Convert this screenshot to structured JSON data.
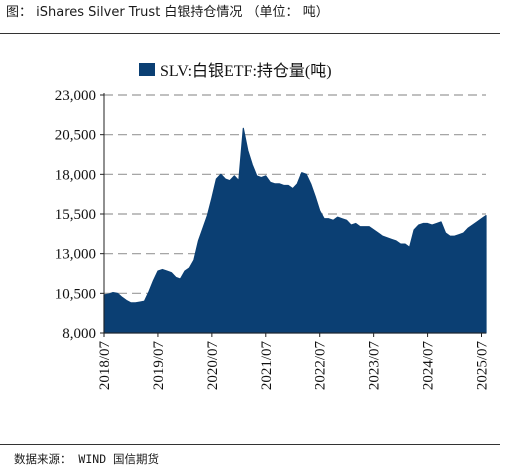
{
  "figure": {
    "title": "图：  iShares Silver Trust  白银持仓情况 （单位：  吨）",
    "source": "数据来源：  WIND  国信期货"
  },
  "colors": {
    "series": "#0b3f73",
    "grid": "#9a9a9a",
    "axis": "#222222"
  },
  "chart_data": {
    "type": "area",
    "title": "",
    "xlabel": "",
    "ylabel": "",
    "ylim": [
      8000,
      23000
    ],
    "yticks": [
      8000,
      10500,
      13000,
      15500,
      18000,
      20500,
      23000
    ],
    "ytick_labels": [
      "8,000",
      "10,500",
      "13,000",
      "15,500",
      "18,000",
      "20,500",
      "23,000"
    ],
    "xlim": [
      "2018-07",
      "2025-08"
    ],
    "xticks": [
      "2018/07",
      "2019/07",
      "2020/07",
      "2021/07",
      "2022/07",
      "2023/07",
      "2024/07",
      "2025/07"
    ],
    "grid": "horizontal-dashed",
    "legend_position": "top-center",
    "series": [
      {
        "name": "SLV:白银ETF:持仓量(吨)",
        "points": [
          [
            "2018-07",
            10400
          ],
          [
            "2018-08",
            10450
          ],
          [
            "2018-09",
            10550
          ],
          [
            "2018-10",
            10500
          ],
          [
            "2018-11",
            10250
          ],
          [
            "2018-12",
            10050
          ],
          [
            "2019-01",
            9900
          ],
          [
            "2019-02",
            9900
          ],
          [
            "2019-03",
            9950
          ],
          [
            "2019-04",
            10000
          ],
          [
            "2019-05",
            10600
          ],
          [
            "2019-06",
            11300
          ],
          [
            "2019-07",
            11900
          ],
          [
            "2019-08",
            12000
          ],
          [
            "2019-09",
            11900
          ],
          [
            "2019-10",
            11800
          ],
          [
            "2019-11",
            11500
          ],
          [
            "2019-12",
            11400
          ],
          [
            "2020-01",
            11900
          ],
          [
            "2020-02",
            12100
          ],
          [
            "2020-03",
            12600
          ],
          [
            "2020-04",
            13800
          ],
          [
            "2020-05",
            14600
          ],
          [
            "2020-06",
            15400
          ],
          [
            "2020-07",
            16500
          ],
          [
            "2020-08",
            17700
          ],
          [
            "2020-09",
            18000
          ],
          [
            "2020-10",
            17700
          ],
          [
            "2020-11",
            17600
          ],
          [
            "2020-12",
            17900
          ],
          [
            "2021-01",
            17600
          ],
          [
            "2021-02",
            20900
          ],
          [
            "2021-03",
            19500
          ],
          [
            "2021-04",
            18600
          ],
          [
            "2021-05",
            17900
          ],
          [
            "2021-06",
            17800
          ],
          [
            "2021-07",
            17900
          ],
          [
            "2021-08",
            17500
          ],
          [
            "2021-09",
            17400
          ],
          [
            "2021-10",
            17400
          ],
          [
            "2021-11",
            17300
          ],
          [
            "2021-12",
            17300
          ],
          [
            "2022-01",
            17100
          ],
          [
            "2022-02",
            17400
          ],
          [
            "2022-03",
            18100
          ],
          [
            "2022-04",
            18000
          ],
          [
            "2022-05",
            17400
          ],
          [
            "2022-06",
            16600
          ],
          [
            "2022-07",
            15700
          ],
          [
            "2022-08",
            15200
          ],
          [
            "2022-09",
            15200
          ],
          [
            "2022-10",
            15100
          ],
          [
            "2022-11",
            15300
          ],
          [
            "2022-12",
            15200
          ],
          [
            "2023-01",
            15100
          ],
          [
            "2023-02",
            14800
          ],
          [
            "2023-03",
            14900
          ],
          [
            "2023-04",
            14700
          ],
          [
            "2023-05",
            14700
          ],
          [
            "2023-06",
            14700
          ],
          [
            "2023-07",
            14500
          ],
          [
            "2023-08",
            14300
          ],
          [
            "2023-09",
            14100
          ],
          [
            "2023-10",
            14000
          ],
          [
            "2023-11",
            13900
          ],
          [
            "2023-12",
            13800
          ],
          [
            "2024-01",
            13600
          ],
          [
            "2024-02",
            13600
          ],
          [
            "2024-03",
            13400
          ],
          [
            "2024-04",
            14500
          ],
          [
            "2024-05",
            14800
          ],
          [
            "2024-06",
            14900
          ],
          [
            "2024-07",
            14900
          ],
          [
            "2024-08",
            14800
          ],
          [
            "2024-09",
            14900
          ],
          [
            "2024-10",
            15000
          ],
          [
            "2024-11",
            14300
          ],
          [
            "2024-12",
            14100
          ],
          [
            "2025-01",
            14100
          ],
          [
            "2025-02",
            14200
          ],
          [
            "2025-03",
            14300
          ],
          [
            "2025-04",
            14600
          ],
          [
            "2025-05",
            14800
          ],
          [
            "2025-06",
            15000
          ],
          [
            "2025-07",
            15200
          ],
          [
            "2025-08",
            15400
          ]
        ]
      }
    ]
  }
}
